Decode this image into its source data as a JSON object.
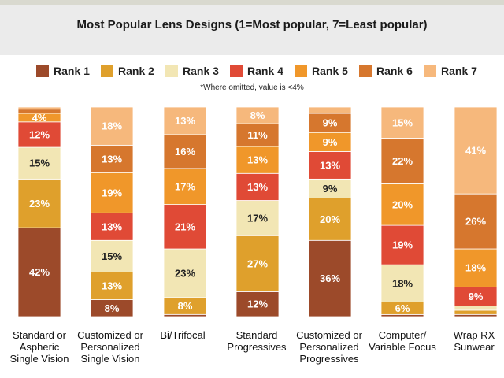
{
  "header": {
    "title": "Most Popular Lens Designs (1=Most popular, 7=Least popular)"
  },
  "note": "*Where omitted, value is <4%",
  "legend": [
    {
      "label": "Rank 1",
      "color": "#9c4a2a"
    },
    {
      "label": "Rank 2",
      "color": "#dfa02c"
    },
    {
      "label": "Rank 3",
      "color": "#f2e6b4"
    },
    {
      "label": "Rank 4",
      "color": "#e04a36"
    },
    {
      "label": "Rank 5",
      "color": "#f0972a"
    },
    {
      "label": "Rank 6",
      "color": "#d6772e"
    },
    {
      "label": "Rank 7",
      "color": "#f6b87c"
    }
  ],
  "chart_data": {
    "type": "bar",
    "stacked": true,
    "title": "Most Popular Lens Designs (1=Most popular, 7=Least popular)",
    "categories": [
      "Standard or\nAspheric\nSingle Vision",
      "Customized or\nPersonalized\nSingle Vision",
      "Bi/Trifocal",
      "Standard\nProgressives",
      "Customized or\nPersonalized\nProgressives",
      "Computer/\nVariable Focus",
      "Wrap RX\nSunwear"
    ],
    "series": [
      {
        "name": "Rank 1",
        "values": [
          42,
          8,
          1,
          12,
          36,
          1,
          1
        ],
        "labels": [
          "42%",
          "8%",
          "",
          "12%",
          "36%",
          "",
          ""
        ]
      },
      {
        "name": "Rank 2",
        "values": [
          23,
          13,
          8,
          27,
          20,
          6,
          2
        ],
        "labels": [
          "23%",
          "13%",
          "8%",
          "27%",
          "20%",
          "6%",
          ""
        ]
      },
      {
        "name": "Rank 3",
        "values": [
          15,
          15,
          23,
          17,
          9,
          18,
          2
        ],
        "labels": [
          "15%",
          "15%",
          "23%",
          "17%",
          "9%",
          "18%",
          ""
        ]
      },
      {
        "name": "Rank 4",
        "values": [
          12,
          13,
          21,
          13,
          13,
          19,
          9
        ],
        "labels": [
          "12%",
          "13%",
          "21%",
          "13%",
          "13%",
          "19%",
          "9%"
        ]
      },
      {
        "name": "Rank 5",
        "values": [
          4,
          19,
          17,
          13,
          9,
          20,
          18
        ],
        "labels": [
          "4%",
          "19%",
          "17%",
          "13%",
          "9%",
          "20%",
          "18%"
        ]
      },
      {
        "name": "Rank 6",
        "values": [
          2,
          13,
          16,
          11,
          9,
          22,
          26
        ],
        "labels": [
          "",
          "13%",
          "16%",
          "11%",
          "9%",
          "22%",
          "26%"
        ]
      },
      {
        "name": "Rank 7",
        "values": [
          1,
          18,
          13,
          8,
          3,
          15,
          41
        ],
        "labels": [
          "",
          "18%",
          "13%",
          "8%",
          "",
          "15%",
          "41%"
        ]
      }
    ],
    "ylim": [
      0,
      100
    ],
    "legend_position": "top",
    "grid": false
  }
}
